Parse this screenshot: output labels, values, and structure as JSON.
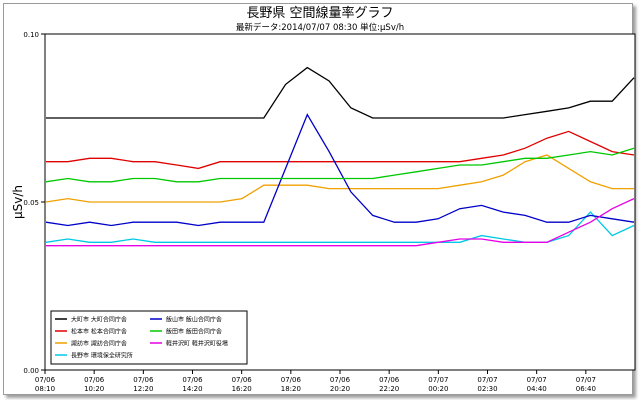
{
  "chart_data": {
    "type": "line",
    "title": "長野県 空間線量率グラフ",
    "subtitle": "最新データ:2014/07/07 08:30 単位:μSv/h",
    "ylabel": "μSv/h",
    "xlabel": "",
    "ylim": [
      0,
      0.1
    ],
    "yticks": [
      "0.00",
      "0.05",
      "0.10"
    ],
    "grid": false,
    "legend_position": "bottom-left",
    "x_tick_labels": [
      [
        "07/06",
        "08:10"
      ],
      [
        "07/06",
        "10:20"
      ],
      [
        "07/06",
        "12:20"
      ],
      [
        "07/06",
        "14:20"
      ],
      [
        "07/06",
        "16:20"
      ],
      [
        "07/06",
        "18:20"
      ],
      [
        "07/06",
        "20:20"
      ],
      [
        "07/06",
        "22:20"
      ],
      [
        "07/07",
        "00:20"
      ],
      [
        "07/07",
        "02:30"
      ],
      [
        "07/07",
        "04:40"
      ],
      [
        "07/07",
        "06:40"
      ]
    ],
    "x_points": [
      "07/06 08:10",
      "07/06 09:00",
      "07/06 10:00",
      "07/06 11:00",
      "07/06 12:00",
      "07/06 13:00",
      "07/06 14:00",
      "07/06 15:00",
      "07/06 16:00",
      "07/06 17:00",
      "07/06 18:00",
      "07/06 18:30",
      "07/06 19:00",
      "07/06 19:30",
      "07/06 20:00",
      "07/06 21:00",
      "07/06 22:00",
      "07/06 23:00",
      "07/07 00:00",
      "07/07 01:00",
      "07/07 02:00",
      "07/07 03:00",
      "07/07 04:00",
      "07/07 05:00",
      "07/07 06:00",
      "07/07 07:00",
      "07/07 08:00",
      "07/07 08:30"
    ],
    "series": [
      {
        "name": "大町市 大町合同庁舎",
        "color": "#000000",
        "values": [
          0.075,
          0.075,
          0.075,
          0.075,
          0.075,
          0.075,
          0.075,
          0.075,
          0.075,
          0.075,
          0.075,
          0.085,
          0.09,
          0.086,
          0.078,
          0.075,
          0.075,
          0.075,
          0.075,
          0.075,
          0.075,
          0.075,
          0.076,
          0.077,
          0.078,
          0.08,
          0.08,
          0.087
        ]
      },
      {
        "name": "松本市 松本合同庁舎",
        "color": "#e00000",
        "values": [
          0.062,
          0.062,
          0.063,
          0.063,
          0.062,
          0.062,
          0.061,
          0.06,
          0.062,
          0.062,
          0.062,
          0.062,
          0.062,
          0.062,
          0.062,
          0.062,
          0.062,
          0.062,
          0.062,
          0.062,
          0.063,
          0.064,
          0.066,
          0.069,
          0.071,
          0.068,
          0.065,
          0.064
        ]
      },
      {
        "name": "諏訪市 諏訪合同庁舎",
        "color": "#f0a000",
        "values": [
          0.05,
          0.051,
          0.05,
          0.05,
          0.05,
          0.05,
          0.05,
          0.05,
          0.05,
          0.051,
          0.055,
          0.055,
          0.055,
          0.054,
          0.054,
          0.054,
          0.054,
          0.054,
          0.054,
          0.055,
          0.056,
          0.058,
          0.062,
          0.064,
          0.06,
          0.056,
          0.054,
          0.054
        ]
      },
      {
        "name": "長野市 環境保全研究所",
        "color": "#00c8e6",
        "values": [
          0.038,
          0.039,
          0.038,
          0.038,
          0.039,
          0.038,
          0.038,
          0.038,
          0.038,
          0.038,
          0.038,
          0.038,
          0.038,
          0.038,
          0.038,
          0.038,
          0.038,
          0.038,
          0.038,
          0.038,
          0.04,
          0.039,
          0.038,
          0.038,
          0.04,
          0.047,
          0.04,
          0.043
        ]
      },
      {
        "name": "飯山市 飯山合同庁舎",
        "color": "#0000c8",
        "values": [
          0.044,
          0.043,
          0.044,
          0.043,
          0.044,
          0.044,
          0.044,
          0.043,
          0.044,
          0.044,
          0.044,
          0.06,
          0.076,
          0.065,
          0.053,
          0.046,
          0.044,
          0.044,
          0.045,
          0.048,
          0.049,
          0.047,
          0.046,
          0.044,
          0.044,
          0.046,
          0.045,
          0.044
        ]
      },
      {
        "name": "飯田市 飯田合同庁舎",
        "color": "#00c800",
        "values": [
          0.056,
          0.057,
          0.056,
          0.056,
          0.057,
          0.057,
          0.056,
          0.056,
          0.057,
          0.057,
          0.057,
          0.057,
          0.057,
          0.057,
          0.057,
          0.057,
          0.058,
          0.059,
          0.06,
          0.061,
          0.061,
          0.062,
          0.063,
          0.063,
          0.064,
          0.065,
          0.064,
          0.066
        ]
      },
      {
        "name": "軽井沢町 軽井沢町役場",
        "color": "#e600e6",
        "values": [
          0.037,
          0.037,
          0.037,
          0.037,
          0.037,
          0.037,
          0.037,
          0.037,
          0.037,
          0.037,
          0.037,
          0.037,
          0.037,
          0.037,
          0.037,
          0.037,
          0.037,
          0.037,
          0.038,
          0.039,
          0.039,
          0.038,
          0.038,
          0.038,
          0.041,
          0.044,
          0.048,
          0.051
        ]
      }
    ],
    "legend_order": [
      0,
      4,
      1,
      5,
      2,
      6,
      3
    ]
  }
}
